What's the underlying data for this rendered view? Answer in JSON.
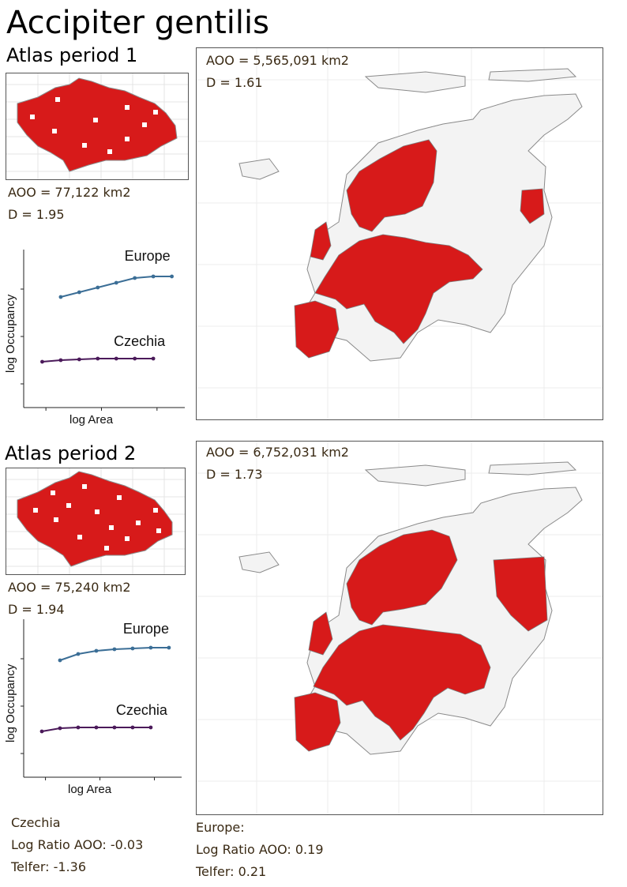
{
  "title": "Accipiter gentilis",
  "period1": {
    "label": "Atlas period 1",
    "czech_aoo": "AOO = 77,122 km2",
    "czech_d": "D = 1.95",
    "europe_aoo": "AOO = 5,565,091 km2",
    "europe_d": "D = 1.61"
  },
  "period2": {
    "label": "Atlas period 2",
    "czech_aoo": "AOO = 75,240 km2",
    "czech_d": "D = 1.94",
    "europe_aoo": "AOO = 6,752,031 km2",
    "europe_d": "D = 1.73"
  },
  "summary": {
    "czechia": {
      "heading": "Czechia",
      "log_ratio": "Log Ratio AOO: -0.03",
      "telfer": "Telfer: -1.36"
    },
    "europe": {
      "heading": "Europe:",
      "log_ratio": "Log Ratio AOO: 0.19",
      "telfer": "Telfer: 0.21"
    }
  },
  "colors": {
    "occupied": "#d71a1a",
    "grid_cell": "#7a7a7a",
    "europe_series": "#3b6e96",
    "czechia_series": "#4b1a5a"
  },
  "chart_data": [
    {
      "type": "line",
      "panel": "Atlas period 1",
      "xlabel": "log Area",
      "ylabel": "log Occupancy",
      "grid": false,
      "x": [
        1,
        2,
        3,
        4,
        5,
        6,
        7
      ],
      "series": [
        {
          "name": "Europe",
          "x": [
            2,
            3,
            4,
            5,
            6,
            7,
            8
          ],
          "values": [
            0.7,
            0.73,
            0.76,
            0.79,
            0.82,
            0.83,
            0.83
          ]
        },
        {
          "name": "Czechia",
          "x": [
            1,
            2,
            3,
            4,
            5,
            6,
            7
          ],
          "values": [
            0.29,
            0.3,
            0.305,
            0.31,
            0.31,
            0.31,
            0.31
          ]
        }
      ]
    },
    {
      "type": "line",
      "panel": "Atlas period 2",
      "xlabel": "log Area",
      "ylabel": "log Occupancy",
      "grid": false,
      "series": [
        {
          "name": "Europe",
          "x": [
            2,
            3,
            4,
            5,
            6,
            7,
            8
          ],
          "values": [
            0.74,
            0.78,
            0.8,
            0.81,
            0.815,
            0.82,
            0.82
          ]
        },
        {
          "name": "Czechia",
          "x": [
            1,
            2,
            3,
            4,
            5,
            6,
            7
          ],
          "values": [
            0.29,
            0.31,
            0.315,
            0.315,
            0.315,
            0.315,
            0.315
          ]
        }
      ]
    }
  ]
}
